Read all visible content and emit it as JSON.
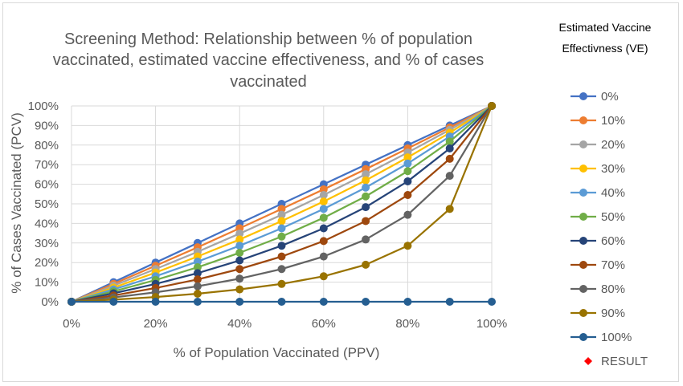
{
  "chart_data": {
    "type": "line",
    "title_lines": [
      "Screening Method: Relationship between % of population",
      "vaccinated, estimated vaccine effectiveness, and % of cases",
      "vaccinated"
    ],
    "xlabel": "% of Population Vaccinated (PPV)",
    "ylabel": "% of Cases Vaccinated (PCV)",
    "x": [
      0,
      0.1,
      0.2,
      0.3,
      0.4,
      0.5,
      0.6,
      0.7,
      0.8,
      0.9,
      1.0
    ],
    "xlim": [
      0,
      1
    ],
    "ylim": [
      0,
      1
    ],
    "x_ticks": [
      "0%",
      "20%",
      "40%",
      "60%",
      "80%",
      "100%"
    ],
    "y_ticks": [
      "0%",
      "10%",
      "20%",
      "30%",
      "40%",
      "50%",
      "60%",
      "70%",
      "80%",
      "90%",
      "100%"
    ],
    "grid": true,
    "legend_title_lines": [
      "Estimated Vaccine",
      "Effectivness (VE)"
    ],
    "legend_position": "right",
    "series": [
      {
        "name": "0%",
        "color": "#4472C4",
        "values": [
          0,
          0.1,
          0.2,
          0.3,
          0.4,
          0.5,
          0.6,
          0.7,
          0.8,
          0.9,
          1
        ]
      },
      {
        "name": "10%",
        "color": "#ED7D31",
        "values": [
          0,
          0.091,
          0.184,
          0.278,
          0.375,
          0.474,
          0.574,
          0.677,
          0.783,
          0.89,
          1
        ]
      },
      {
        "name": "20%",
        "color": "#A5A5A5",
        "values": [
          0,
          0.082,
          0.167,
          0.255,
          0.348,
          0.444,
          0.545,
          0.651,
          0.762,
          0.878,
          1
        ]
      },
      {
        "name": "30%",
        "color": "#FFC000",
        "values": [
          0,
          0.072,
          0.149,
          0.231,
          0.318,
          0.412,
          0.512,
          0.62,
          0.737,
          0.863,
          1
        ]
      },
      {
        "name": "40%",
        "color": "#5B9BD5",
        "values": [
          0,
          0.063,
          0.13,
          0.205,
          0.286,
          0.375,
          0.474,
          0.583,
          0.706,
          0.844,
          1
        ]
      },
      {
        "name": "50%",
        "color": "#70AD47",
        "values": [
          0,
          0.053,
          0.111,
          0.176,
          0.25,
          0.333,
          0.429,
          0.538,
          0.667,
          0.818,
          1
        ]
      },
      {
        "name": "60%",
        "color": "#264478",
        "values": [
          0,
          0.043,
          0.091,
          0.146,
          0.211,
          0.286,
          0.375,
          0.483,
          0.615,
          0.783,
          1
        ]
      },
      {
        "name": "70%",
        "color": "#9E480E",
        "values": [
          0,
          0.032,
          0.07,
          0.114,
          0.167,
          0.231,
          0.31,
          0.412,
          0.545,
          0.73,
          1
        ]
      },
      {
        "name": "80%",
        "color": "#636363",
        "values": [
          0,
          0.022,
          0.048,
          0.079,
          0.118,
          0.167,
          0.231,
          0.318,
          0.444,
          0.643,
          1
        ]
      },
      {
        "name": "90%",
        "color": "#997300",
        "values": [
          0,
          0.011,
          0.024,
          0.041,
          0.063,
          0.091,
          0.13,
          0.189,
          0.286,
          0.474,
          1
        ]
      },
      {
        "name": "100%",
        "color": "#255E91",
        "values": [
          0,
          0,
          0,
          0,
          0,
          0,
          0,
          0,
          0,
          0,
          0
        ]
      }
    ],
    "extra_legend": {
      "name": "RESULT",
      "color": "#FF0000",
      "marker": "diamond"
    }
  }
}
